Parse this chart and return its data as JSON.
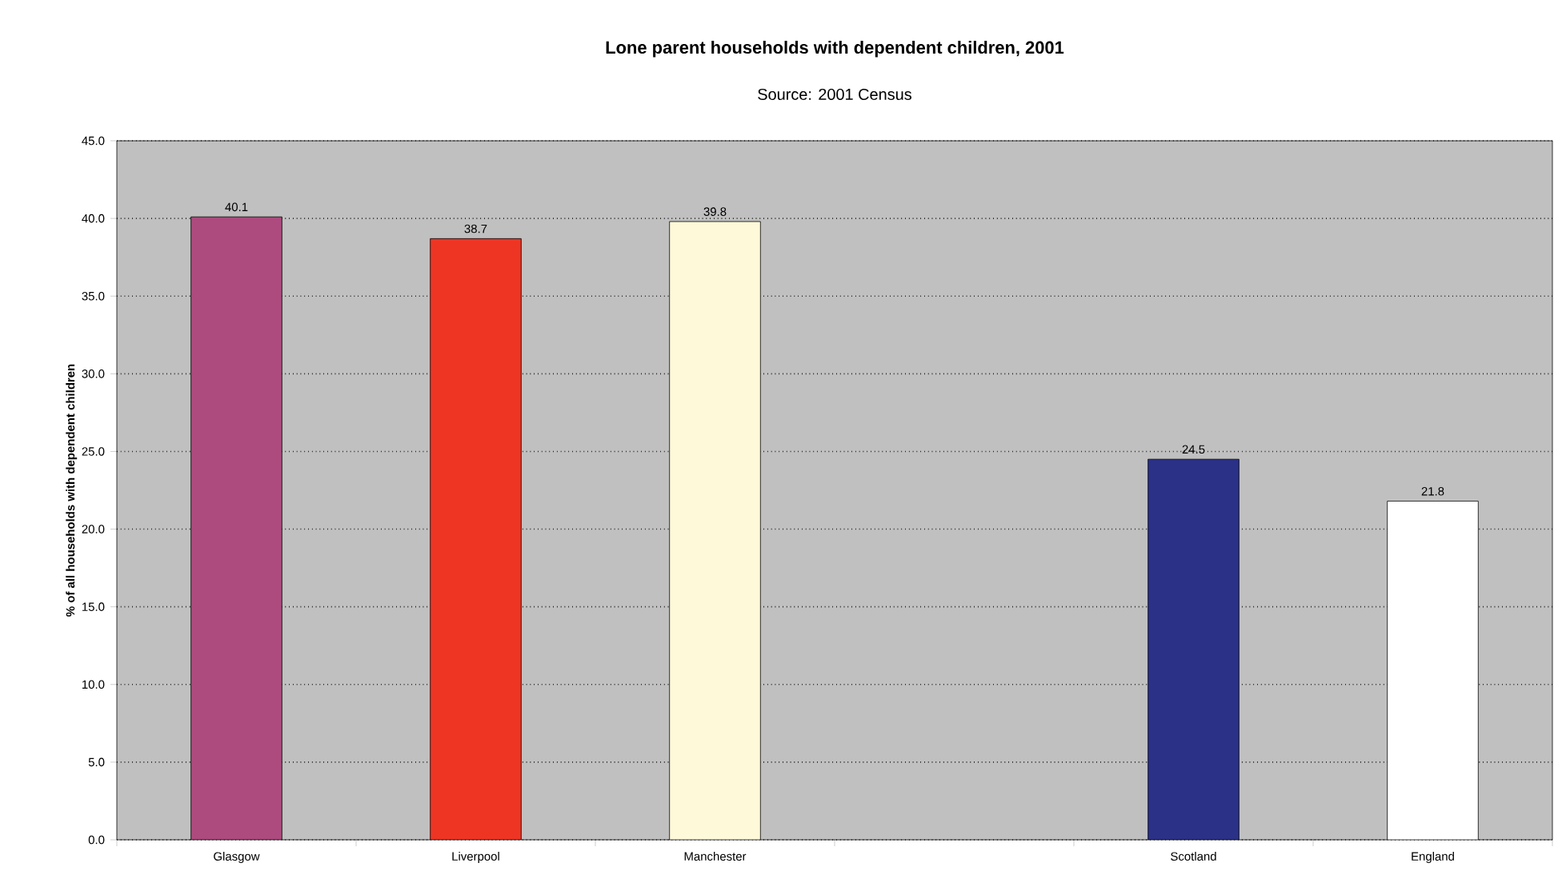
{
  "chart_data": {
    "type": "bar",
    "title": "**Lone parent households with dependent children, 2001**",
    "subtitle": "Source: 2001 Census",
    "ylabel": "**% of all households with dependent children**",
    "categories": [
      "Glasgow",
      "Liverpool",
      "Manchester",
      null,
      "Scotland",
      "England"
    ],
    "values": [
      40.1,
      38.7,
      39.8,
      null,
      24.5,
      21.8
    ],
    "colors": [
      "#ad4a7e",
      "#ee3524",
      "#fdf9d9",
      "#c0c0c0",
      "#2b3186",
      "#ffffff"
    ],
    "ylim": [
      0,
      45
    ],
    "yticks": [
      {
        "value": 0,
        "label": "0.0"
      },
      {
        "value": 5,
        "label": "5.0"
      },
      {
        "value": 10,
        "label": "10.0"
      },
      {
        "value": 15,
        "label": "15.0"
      },
      {
        "value": 20,
        "label": "20.0"
      },
      {
        "value": 25,
        "label": "25.0"
      },
      {
        "value": 30,
        "label": "30.0"
      },
      {
        "value": 35,
        "label": "35.0"
      },
      {
        "value": 40,
        "label": "40.0"
      },
      {
        "value": 45,
        "label": "45.0"
      }
    ],
    "grid": "y",
    "data_labels": true
  }
}
